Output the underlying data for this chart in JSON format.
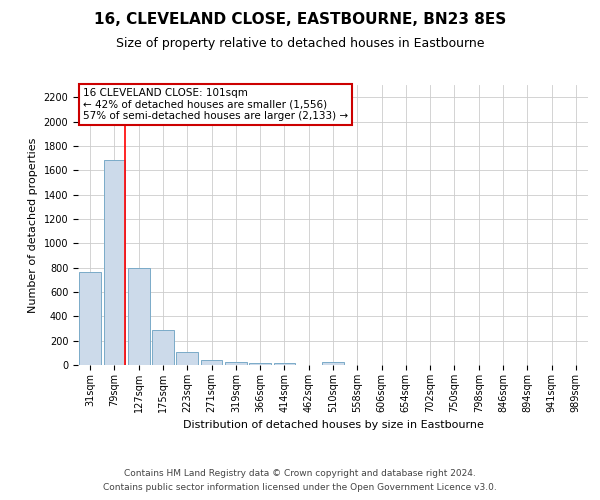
{
  "title": "16, CLEVELAND CLOSE, EASTBOURNE, BN23 8ES",
  "subtitle": "Size of property relative to detached houses in Eastbourne",
  "xlabel": "Distribution of detached houses by size in Eastbourne",
  "ylabel": "Number of detached properties",
  "footnote1": "Contains HM Land Registry data © Crown copyright and database right 2024.",
  "footnote2": "Contains public sector information licensed under the Open Government Licence v3.0.",
  "categories": [
    "31sqm",
    "79sqm",
    "127sqm",
    "175sqm",
    "223sqm",
    "271sqm",
    "319sqm",
    "366sqm",
    "414sqm",
    "462sqm",
    "510sqm",
    "558sqm",
    "606sqm",
    "654sqm",
    "702sqm",
    "750sqm",
    "798sqm",
    "846sqm",
    "894sqm",
    "941sqm",
    "989sqm"
  ],
  "values": [
    760,
    1680,
    800,
    290,
    110,
    40,
    28,
    18,
    15,
    0,
    22,
    0,
    0,
    0,
    0,
    0,
    0,
    0,
    0,
    0,
    0
  ],
  "bar_color": "#ccdaea",
  "bar_edge_color": "#7aaac8",
  "red_line_x": 1.45,
  "annotation_line1": "16 CLEVELAND CLOSE: 101sqm",
  "annotation_line2": "← 42% of detached houses are smaller (1,556)",
  "annotation_line3": "57% of semi-detached houses are larger (2,133) →",
  "ylim": [
    0,
    2300
  ],
  "yticks": [
    0,
    200,
    400,
    600,
    800,
    1000,
    1200,
    1400,
    1600,
    1800,
    2000,
    2200
  ],
  "bg_color": "#ffffff",
  "grid_color": "#cccccc",
  "annotation_box_color": "#ffffff",
  "annotation_box_edge": "#cc0000",
  "title_fontsize": 11,
  "subtitle_fontsize": 9,
  "axis_fontsize": 8,
  "tick_fontsize": 7,
  "footnote_fontsize": 6.5
}
